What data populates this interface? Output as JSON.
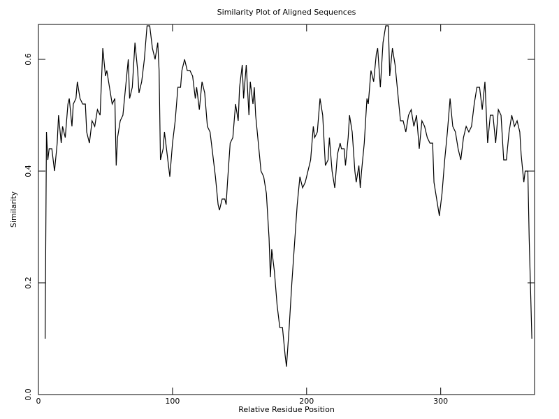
{
  "chart_data": {
    "type": "line",
    "title": "Similarity Plot of Aligned Sequences",
    "x_label": "Relative Residue Position",
    "y_label": "Similarity",
    "color": "#000000",
    "xlim": [
      0,
      370
    ],
    "ylim": [
      0,
      0.6625
    ],
    "xticks": [
      0,
      100,
      200,
      300
    ],
    "yticks": [
      {
        "value": 0,
        "label": "0.0"
      },
      {
        "value": 0.2,
        "label": "0.2"
      },
      {
        "value": 0.4,
        "label": "0.4"
      },
      {
        "value": 0.6,
        "label": "0.6"
      }
    ],
    "x": [
      5,
      6,
      7,
      8,
      10,
      12,
      14,
      15,
      17,
      18,
      20,
      22,
      23,
      25,
      26,
      28,
      29,
      31,
      33,
      35,
      36,
      38,
      40,
      42,
      44,
      46,
      47,
      48,
      50,
      51,
      53,
      55,
      57,
      58,
      59,
      61,
      63,
      65,
      67,
      68,
      70,
      72,
      74,
      75,
      77,
      79,
      81,
      83,
      85,
      87,
      89,
      90,
      91,
      93,
      94,
      96,
      98,
      100,
      102,
      104,
      106,
      107,
      109,
      111,
      113,
      115,
      117,
      118,
      120,
      122,
      124,
      126,
      128,
      130,
      132,
      134,
      135,
      137,
      139,
      140,
      141,
      143,
      145,
      147,
      149,
      150,
      152,
      153,
      155,
      157,
      158,
      160,
      161,
      162,
      164,
      166,
      168,
      170,
      172,
      173,
      174,
      176,
      178,
      180,
      182,
      184,
      185,
      187,
      189,
      191,
      193,
      195,
      197,
      199,
      201,
      203,
      205,
      206,
      208,
      210,
      212,
      214,
      216,
      217,
      219,
      221,
      223,
      225,
      226,
      228,
      229,
      231,
      232,
      234,
      236,
      237,
      239,
      240,
      241,
      243,
      245,
      246,
      248,
      250,
      252,
      253,
      255,
      257,
      259,
      261,
      262,
      264,
      266,
      268,
      270,
      272,
      274,
      276,
      278,
      280,
      282,
      284,
      286,
      288,
      290,
      292,
      294,
      295,
      297,
      299,
      301,
      303,
      305,
      307,
      309,
      311,
      313,
      315,
      317,
      319,
      321,
      323,
      325,
      327,
      329,
      331,
      333,
      335,
      337,
      339,
      341,
      343,
      345,
      347,
      349,
      351,
      353,
      355,
      357,
      359,
      360,
      362,
      363,
      365,
      366,
      368
    ],
    "values": [
      0.1,
      0.47,
      0.42,
      0.44,
      0.44,
      0.4,
      0.45,
      0.5,
      0.45,
      0.48,
      0.46,
      0.52,
      0.53,
      0.48,
      0.52,
      0.53,
      0.56,
      0.53,
      0.52,
      0.52,
      0.47,
      0.45,
      0.49,
      0.48,
      0.51,
      0.5,
      0.56,
      0.62,
      0.57,
      0.58,
      0.55,
      0.52,
      0.53,
      0.41,
      0.46,
      0.49,
      0.5,
      0.55,
      0.6,
      0.53,
      0.55,
      0.63,
      0.58,
      0.54,
      0.56,
      0.6,
      0.66,
      0.66,
      0.62,
      0.6,
      0.63,
      0.58,
      0.42,
      0.44,
      0.47,
      0.43,
      0.39,
      0.45,
      0.49,
      0.55,
      0.55,
      0.58,
      0.6,
      0.58,
      0.58,
      0.57,
      0.53,
      0.55,
      0.51,
      0.56,
      0.54,
      0.48,
      0.47,
      0.43,
      0.39,
      0.34,
      0.33,
      0.35,
      0.35,
      0.34,
      0.38,
      0.45,
      0.46,
      0.52,
      0.49,
      0.55,
      0.59,
      0.53,
      0.59,
      0.5,
      0.56,
      0.52,
      0.55,
      0.5,
      0.45,
      0.4,
      0.39,
      0.36,
      0.28,
      0.21,
      0.26,
      0.22,
      0.16,
      0.12,
      0.12,
      0.07,
      0.05,
      0.12,
      0.2,
      0.27,
      0.34,
      0.39,
      0.37,
      0.38,
      0.4,
      0.42,
      0.48,
      0.46,
      0.47,
      0.53,
      0.5,
      0.41,
      0.42,
      0.46,
      0.4,
      0.37,
      0.43,
      0.45,
      0.44,
      0.44,
      0.41,
      0.46,
      0.5,
      0.47,
      0.4,
      0.38,
      0.41,
      0.37,
      0.4,
      0.45,
      0.53,
      0.52,
      0.58,
      0.56,
      0.61,
      0.62,
      0.55,
      0.63,
      0.66,
      0.66,
      0.57,
      0.62,
      0.59,
      0.54,
      0.49,
      0.49,
      0.47,
      0.5,
      0.51,
      0.48,
      0.5,
      0.44,
      0.49,
      0.48,
      0.46,
      0.45,
      0.45,
      0.38,
      0.35,
      0.32,
      0.36,
      0.42,
      0.47,
      0.53,
      0.48,
      0.47,
      0.44,
      0.42,
      0.46,
      0.48,
      0.47,
      0.48,
      0.52,
      0.55,
      0.55,
      0.51,
      0.56,
      0.45,
      0.5,
      0.5,
      0.45,
      0.51,
      0.5,
      0.42,
      0.42,
      0.47,
      0.5,
      0.48,
      0.49,
      0.47,
      0.43,
      0.38,
      0.4,
      0.4,
      0.28,
      0.1
    ]
  }
}
